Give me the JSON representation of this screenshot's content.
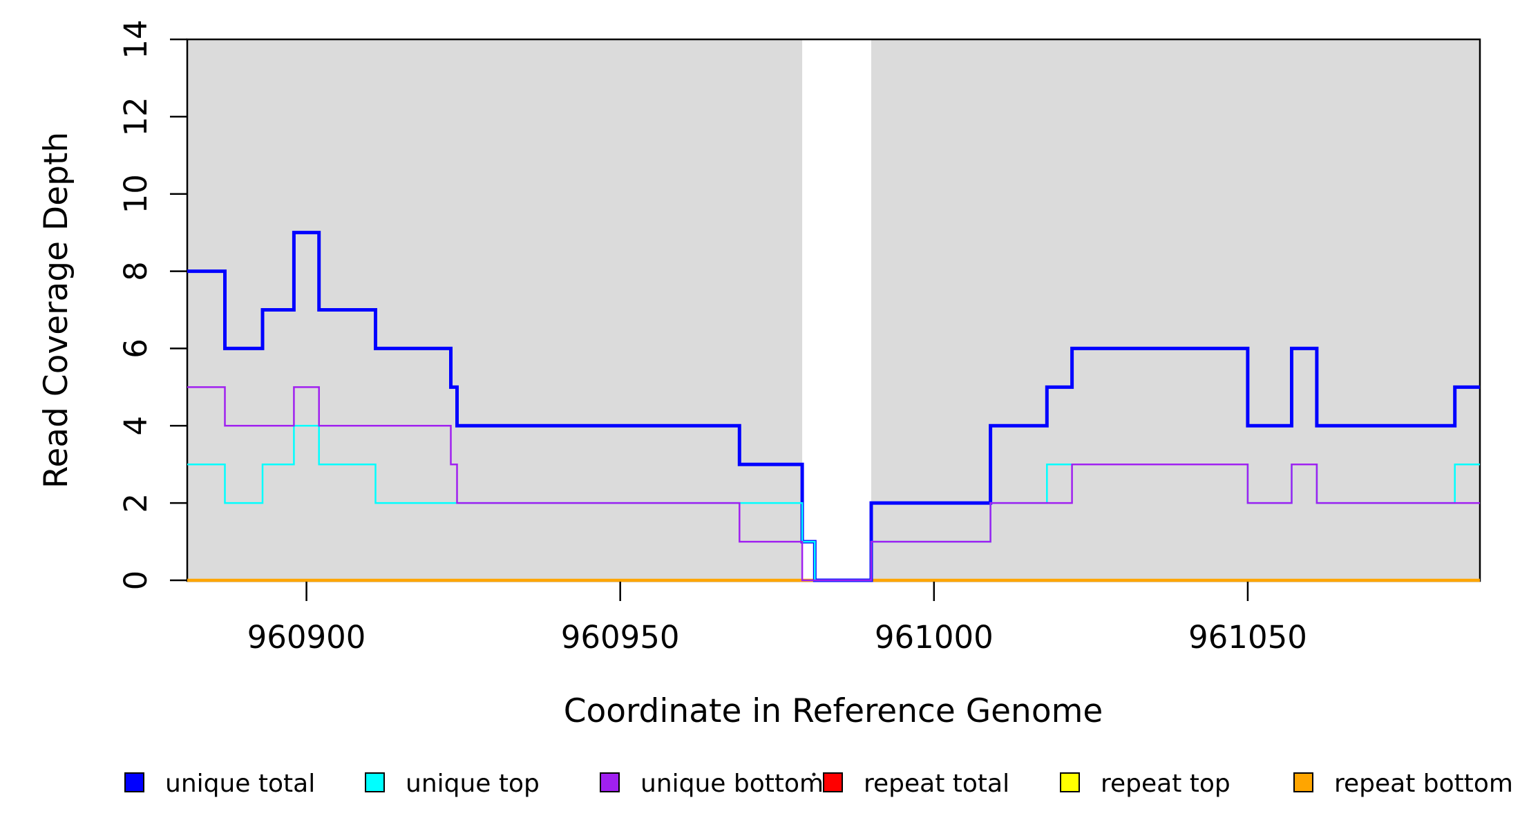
{
  "chart_data": {
    "type": "line",
    "subtype": "step",
    "title": "",
    "xlabel": "Coordinate in Reference Genome",
    "ylabel": "Read Coverage Depth",
    "xlim": [
      960881,
      961087
    ],
    "ylim": [
      0,
      14
    ],
    "xticks": [
      960900,
      960950,
      961000,
      961050
    ],
    "yticks": [
      0,
      2,
      4,
      6,
      8,
      10,
      12,
      14
    ],
    "grid": false,
    "legend_position": "bottom",
    "plot_background": "#ffffff",
    "masked_bands": {
      "color": "#DBDBDB",
      "regions": [
        [
          960881,
          960979
        ],
        [
          960990,
          961087
        ]
      ]
    },
    "draw_order": [
      "repeat total",
      "repeat top",
      "repeat bottom",
      "unique total",
      "unique top",
      "unique bottom"
    ],
    "series": [
      {
        "name": "unique total",
        "color": "#0000FF",
        "lwd": 5,
        "points": [
          [
            960881,
            8
          ],
          [
            960887,
            6
          ],
          [
            960893,
            7
          ],
          [
            960898,
            9
          ],
          [
            960902,
            7
          ],
          [
            960911,
            6
          ],
          [
            960923,
            5
          ],
          [
            960924,
            4
          ],
          [
            960969,
            3
          ],
          [
            960979,
            1
          ],
          [
            960981,
            0
          ],
          [
            960990,
            2
          ],
          [
            961009,
            4
          ],
          [
            961018,
            5
          ],
          [
            961022,
            6
          ],
          [
            961050,
            4
          ],
          [
            961057,
            6
          ],
          [
            961061,
            4
          ],
          [
            961083,
            5
          ],
          [
            961087,
            5
          ]
        ]
      },
      {
        "name": "unique top",
        "color": "#00FFFF",
        "lwd": 2.5,
        "points": [
          [
            960881,
            3
          ],
          [
            960887,
            2
          ],
          [
            960893,
            3
          ],
          [
            960898,
            4
          ],
          [
            960902,
            3
          ],
          [
            960911,
            2
          ],
          [
            960979,
            1
          ],
          [
            960981,
            0
          ],
          [
            960990,
            1
          ],
          [
            961009,
            2
          ],
          [
            961018,
            3
          ],
          [
            961050,
            2
          ],
          [
            961057,
            3
          ],
          [
            961061,
            2
          ],
          [
            961083,
            3
          ],
          [
            961087,
            3
          ]
        ]
      },
      {
        "name": "unique bottom",
        "color": "#A020F0",
        "lwd": 2.5,
        "points": [
          [
            960881,
            5
          ],
          [
            960887,
            4
          ],
          [
            960898,
            5
          ],
          [
            960902,
            4
          ],
          [
            960923,
            3
          ],
          [
            960924,
            2
          ],
          [
            960969,
            1
          ],
          [
            960979,
            0
          ],
          [
            960990,
            1
          ],
          [
            961009,
            2
          ],
          [
            961022,
            3
          ],
          [
            961050,
            2
          ],
          [
            961057,
            3
          ],
          [
            961061,
            2
          ],
          [
            961087,
            2
          ]
        ]
      },
      {
        "name": "repeat total",
        "color": "#FF0000",
        "lwd": 2.5,
        "points": [
          [
            960881,
            0
          ],
          [
            961087,
            0
          ]
        ]
      },
      {
        "name": "repeat top",
        "color": "#FFFF00",
        "lwd": 2.5,
        "points": [
          [
            960881,
            0
          ],
          [
            961087,
            0
          ]
        ]
      },
      {
        "name": "repeat bottom",
        "color": "#FFA500",
        "lwd": 4.5,
        "points": [
          [
            960881,
            0
          ],
          [
            961087,
            0
          ]
        ]
      }
    ]
  }
}
